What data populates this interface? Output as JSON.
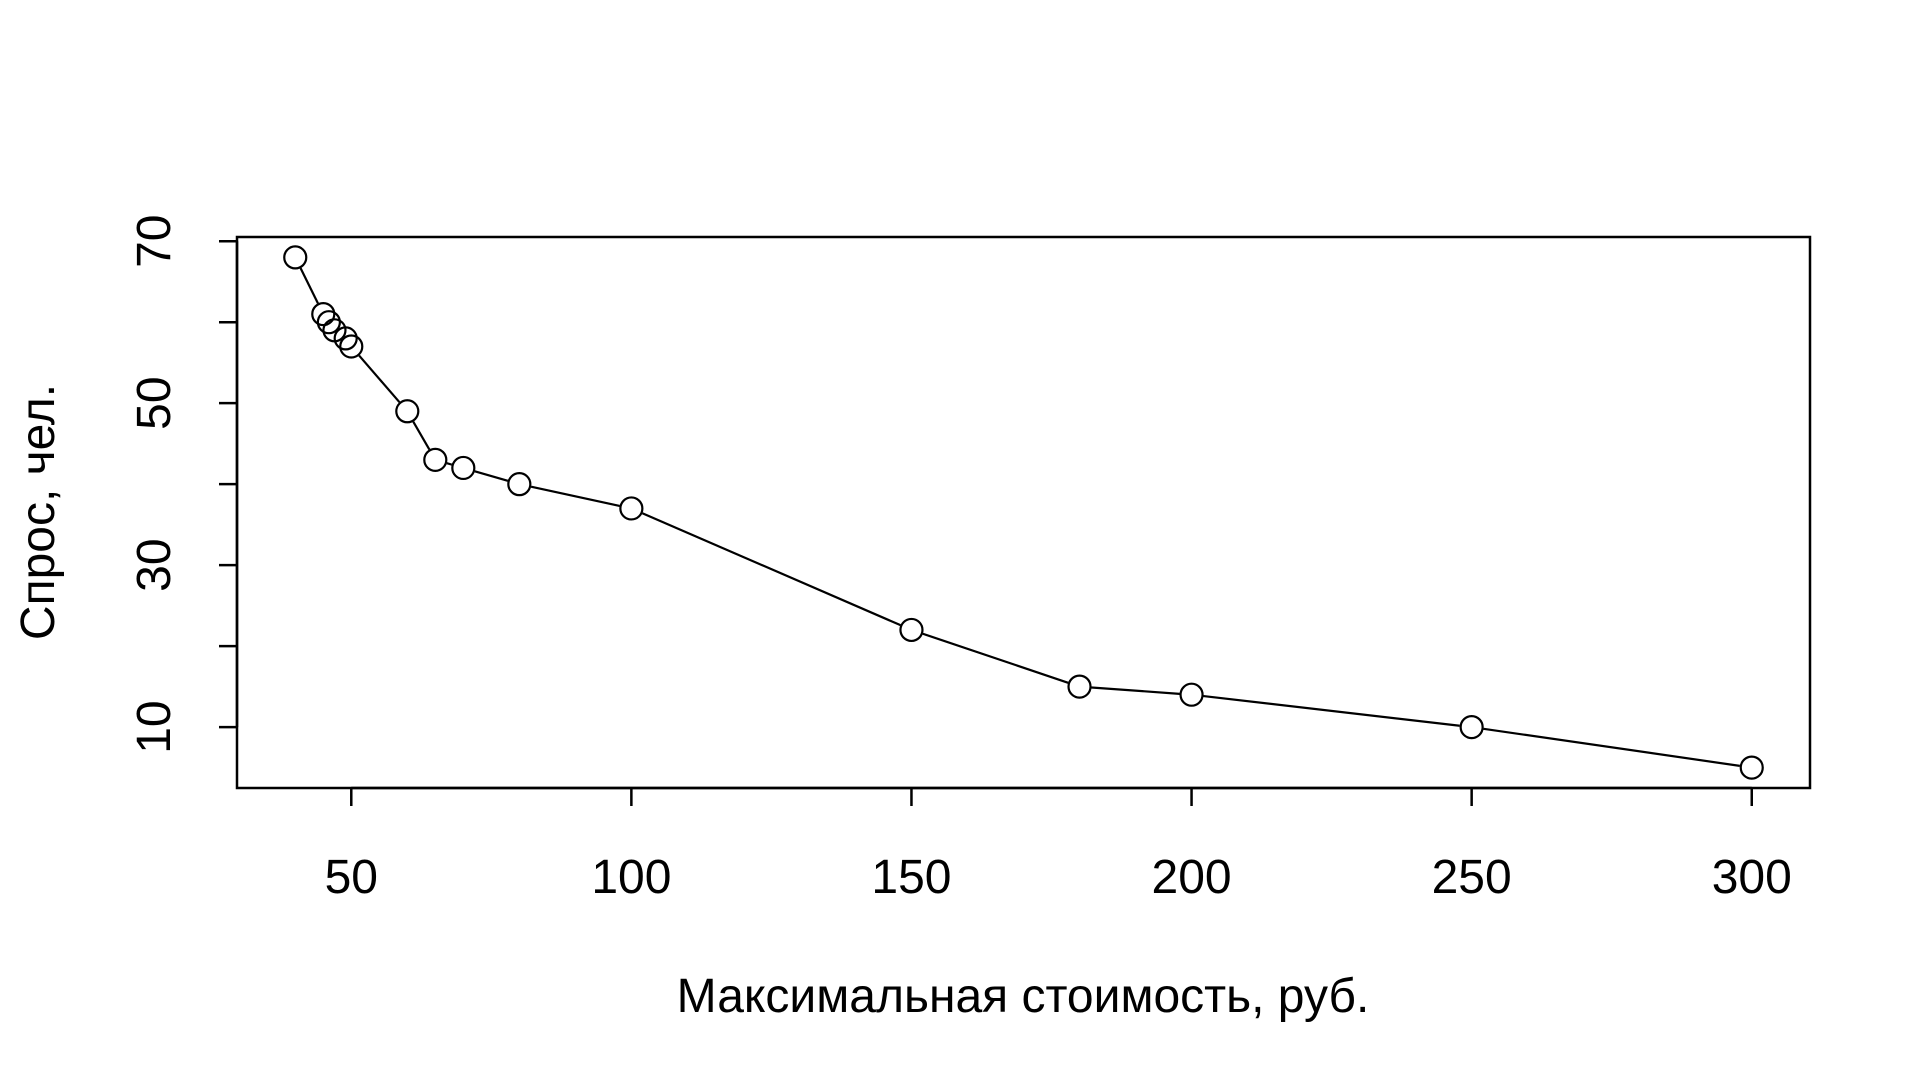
{
  "chart_data": {
    "type": "line",
    "title": "",
    "xlabel": "Максимальная стоимость, руб.",
    "ylabel": "Спрос, чел.",
    "xlim": [
      29.6,
      310.4
    ],
    "ylim": [
      2.48,
      70.52
    ],
    "x_ticks": [
      50,
      100,
      150,
      200,
      250,
      300
    ],
    "y_ticks": [
      10,
      20,
      30,
      40,
      50,
      60,
      70
    ],
    "y_tick_labels_shown": [
      10,
      30,
      50,
      70
    ],
    "grid": false,
    "legend": "none",
    "marker": "open-circle",
    "line_color": "#000000",
    "series": [
      {
        "x": [
          40,
          45,
          46,
          47,
          49,
          50,
          60,
          65,
          70,
          80,
          100,
          150,
          180,
          200,
          250,
          300
        ],
        "y": [
          68,
          61,
          60,
          59,
          58,
          57,
          49,
          43,
          42,
          40,
          37,
          22,
          15,
          14,
          10,
          5
        ]
      }
    ]
  }
}
